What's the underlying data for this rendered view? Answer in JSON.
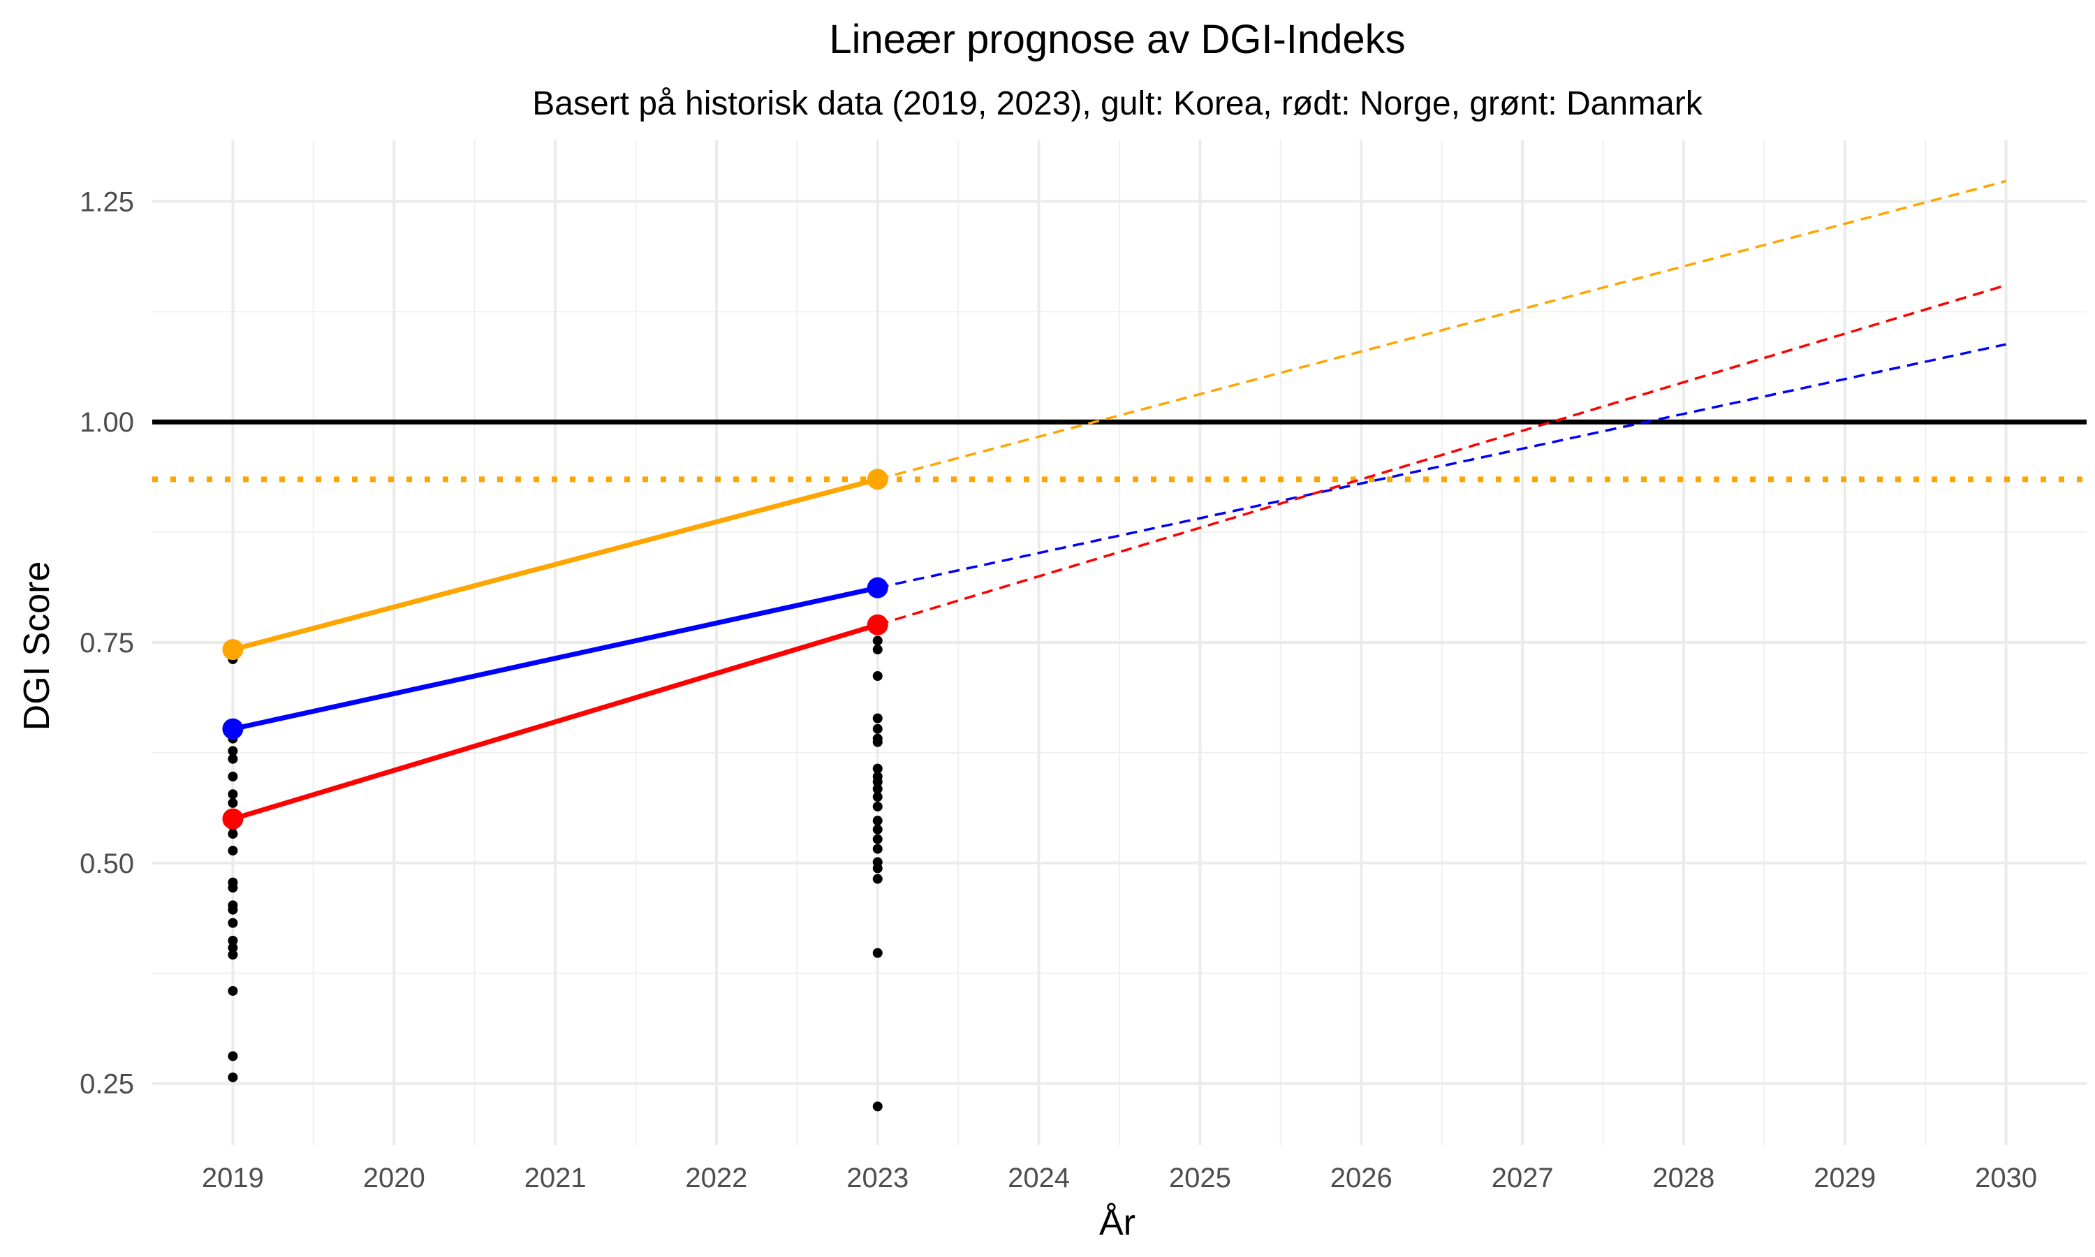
{
  "chart_data": {
    "type": "line",
    "title": "Lineær prognose av DGI-Indeks",
    "subtitle": "Basert på historisk data (2019, 2023), gult: Korea, rødt: Norge, grønt: Danmark",
    "xlabel": "År",
    "ylabel": "DGI Score",
    "xlim": [
      2018.5,
      2030.5
    ],
    "ylim": [
      0.18,
      1.32
    ],
    "x_ticks": [
      2019,
      2020,
      2021,
      2022,
      2023,
      2024,
      2025,
      2026,
      2027,
      2028,
      2029,
      2030
    ],
    "x_tick_labels": [
      "2019",
      "2020",
      "2021",
      "2022",
      "2023",
      "2024",
      "2025",
      "2026",
      "2027",
      "2028",
      "2029",
      "2030"
    ],
    "y_ticks": [
      0.25,
      0.5,
      0.75,
      1.0,
      1.25
    ],
    "y_tick_labels": [
      "0.25",
      "0.50",
      "0.75",
      "1.00",
      "1.25"
    ],
    "grid": true,
    "reference_lines": [
      {
        "y": 1.0,
        "color": "#000000",
        "style": "solid"
      },
      {
        "y": 0.935,
        "color": "#FFA500",
        "style": "dotted"
      }
    ],
    "series": [
      {
        "color": "#FFA500",
        "x": [
          2019,
          2023
        ],
        "values": [
          0.742,
          0.935
        ],
        "forecast": {
          "x": [
            2023,
            2030
          ],
          "values": [
            0.935,
            1.273
          ]
        }
      },
      {
        "color": "#0000FF",
        "x": [
          2019,
          2023
        ],
        "values": [
          0.652,
          0.812
        ],
        "forecast": {
          "x": [
            2023,
            2030
          ],
          "values": [
            0.812,
            1.088
          ]
        }
      },
      {
        "color": "#FF0000",
        "x": [
          2019,
          2023
        ],
        "values": [
          0.55,
          0.77
        ],
        "forecast": {
          "x": [
            2023,
            2030
          ],
          "values": [
            0.77,
            1.155
          ]
        }
      }
    ],
    "scatter": [
      {
        "x": 2019,
        "values": [
          0.738,
          0.731,
          0.651,
          0.641,
          0.627,
          0.618,
          0.598,
          0.578,
          0.568,
          0.551,
          0.542,
          0.533,
          0.514,
          0.478,
          0.472,
          0.452,
          0.447,
          0.432,
          0.412,
          0.404,
          0.396,
          0.355,
          0.281,
          0.257
        ]
      },
      {
        "x": 2023,
        "values": [
          0.775,
          0.764,
          0.752,
          0.742,
          0.712,
          0.664,
          0.652,
          0.641,
          0.637,
          0.607,
          0.598,
          0.592,
          0.584,
          0.575,
          0.564,
          0.548,
          0.538,
          0.527,
          0.516,
          0.501,
          0.494,
          0.482,
          0.398,
          0.224
        ]
      }
    ]
  }
}
